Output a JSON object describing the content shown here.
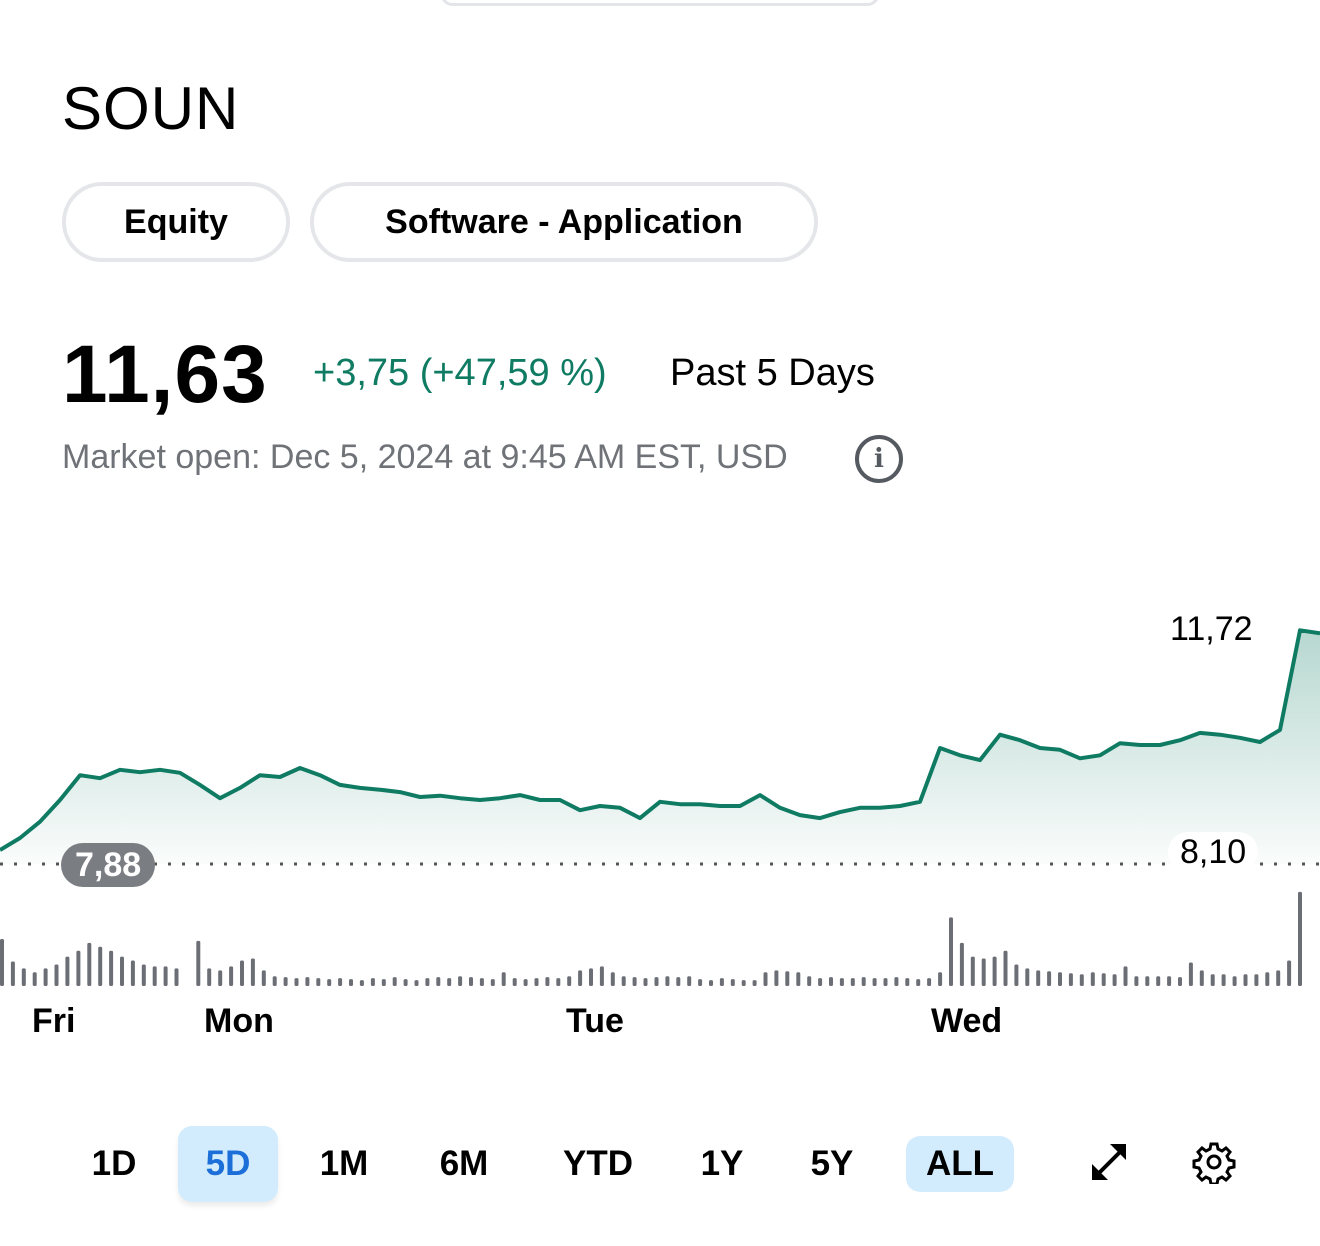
{
  "ticker": "SOUN",
  "tags": [
    "Equity",
    "Software - Application"
  ],
  "quote": {
    "price": "11,63",
    "change": "+3,75 (+47,59 %)",
    "period": "Past 5 Days",
    "market_status": "Market open: Dec 5, 2024 at 9:45 AM EST, USD"
  },
  "colors": {
    "line": "#0f7b63",
    "selected_bg": "#d3ecfd",
    "selected_text": "#1c6fd8",
    "volume": "#6b6f75"
  },
  "chart_data": {
    "type": "area",
    "title": "SOUN Past 5 Days",
    "x_labels": [
      "Fri",
      "Mon",
      "Tue",
      "Wed"
    ],
    "previous_close": 7.88,
    "previous_close_label": "7,88",
    "high_label": "11,72",
    "low_label": "8,10",
    "ylim": [
      7.7,
      11.9
    ],
    "prices": [
      8.11,
      8.31,
      8.58,
      8.94,
      9.35,
      9.3,
      9.44,
      9.4,
      9.44,
      9.39,
      9.19,
      8.97,
      9.14,
      9.35,
      9.32,
      9.47,
      9.35,
      9.19,
      9.14,
      9.11,
      9.07,
      8.99,
      9.01,
      8.97,
      8.94,
      8.97,
      9.02,
      8.94,
      8.94,
      8.77,
      8.84,
      8.81,
      8.64,
      8.91,
      8.87,
      8.87,
      8.84,
      8.84,
      9.02,
      8.81,
      8.69,
      8.64,
      8.74,
      8.81,
      8.81,
      8.84,
      8.91,
      9.8,
      9.68,
      9.6,
      10.02,
      9.93,
      9.8,
      9.77,
      9.63,
      9.68,
      9.88,
      9.85,
      9.85,
      9.93,
      10.05,
      10.02,
      9.97,
      9.9,
      10.1,
      11.75,
      11.7
    ],
    "volume": [
      48,
      25,
      18,
      14,
      18,
      22,
      30,
      36,
      44,
      40,
      36,
      30,
      26,
      22,
      20,
      20,
      18,
      0,
      46,
      18,
      16,
      20,
      26,
      28,
      16,
      10,
      9,
      8,
      9,
      8,
      7,
      8,
      7,
      6,
      8,
      7,
      9,
      7,
      6,
      8,
      9,
      8,
      10,
      9,
      8,
      7,
      14,
      8,
      7,
      8,
      9,
      8,
      10,
      16,
      18,
      20,
      14,
      10,
      9,
      8,
      9,
      10,
      9,
      10,
      7,
      6,
      8,
      7,
      6,
      6,
      14,
      16,
      15,
      14,
      10,
      8,
      9,
      8,
      8,
      9,
      8,
      8,
      9,
      8,
      7,
      8,
      14,
      70,
      44,
      30,
      28,
      30,
      36,
      22,
      18,
      16,
      15,
      14,
      13,
      12,
      14,
      13,
      12,
      20,
      10,
      10,
      10,
      10,
      9,
      24,
      16,
      12,
      12,
      10,
      12,
      12,
      14,
      16,
      26,
      96
    ]
  },
  "ranges": [
    "1D",
    "5D",
    "1M",
    "6M",
    "YTD",
    "1Y",
    "5Y",
    "ALL"
  ],
  "icons": {
    "expand": "expand-arrows-icon",
    "settings": "gear-icon"
  }
}
